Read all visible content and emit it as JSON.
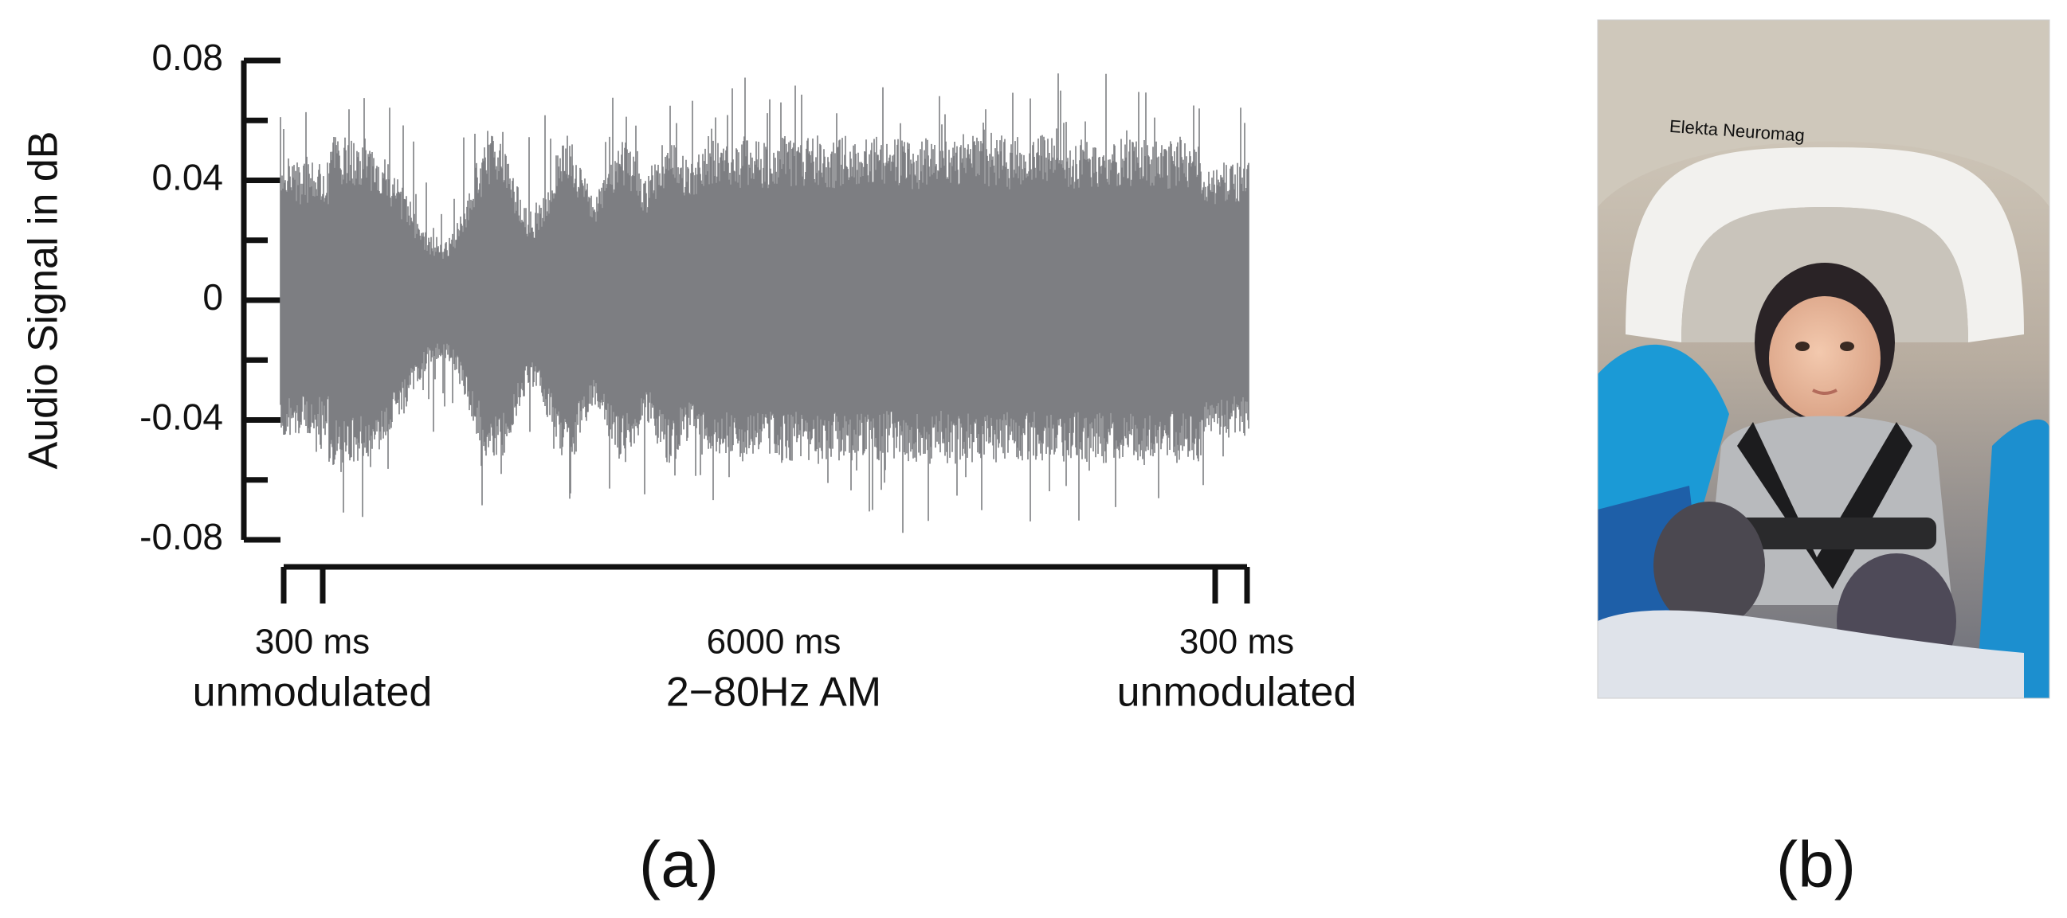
{
  "chart_data": {
    "type": "waveform",
    "ylabel": "Audio Signal in dB",
    "ylim": [
      -0.08,
      0.08
    ],
    "yticks": [
      0.08,
      0.04,
      0,
      -0.04,
      -0.08
    ],
    "yminorticks": [
      0.06,
      0.02,
      -0.02,
      -0.06
    ],
    "color": "#7d7e82",
    "segments": [
      {
        "duration": "300 ms",
        "description": "unmodulated"
      },
      {
        "duration": "6000 ms",
        "description": "2−80Hz AM"
      },
      {
        "duration": "300 ms",
        "description": "unmodulated"
      }
    ],
    "panel_label": "(a)"
  },
  "photo": {
    "panel_label": "(b)",
    "device_text": "Elekta Neuromag"
  }
}
